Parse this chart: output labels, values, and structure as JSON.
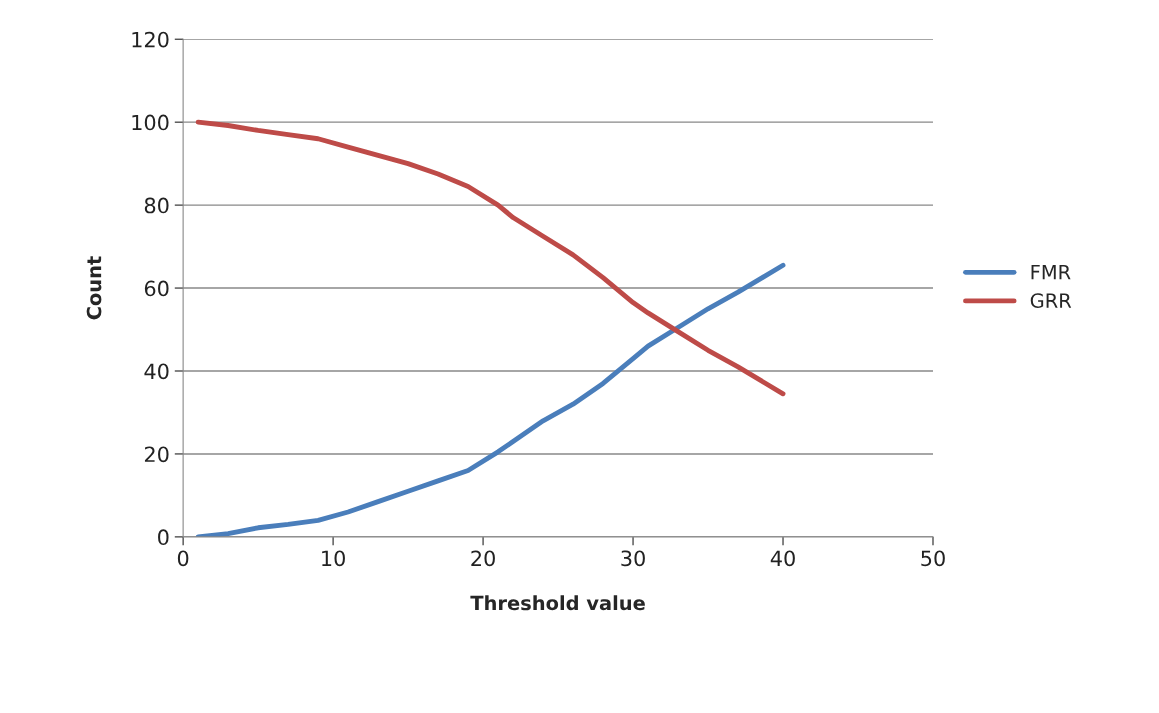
{
  "chart_data": {
    "type": "line",
    "xlabel": "Threshold value",
    "ylabel": "Count",
    "x": [
      1,
      3,
      5,
      7,
      9,
      11,
      13,
      15,
      17,
      19,
      21,
      22,
      24,
      26,
      28,
      30,
      31,
      33,
      35,
      37,
      40
    ],
    "series": [
      {
        "name": "FMR",
        "color": "#4a7ebb",
        "values": [
          0,
          0.8,
          2.2,
          3,
          4,
          6,
          8.5,
          11,
          13.5,
          16,
          20.5,
          23,
          28,
          32,
          37,
          43,
          46,
          50.5,
          55,
          59,
          65.5
        ]
      },
      {
        "name": "GRR",
        "color": "#be4b48",
        "values": [
          100,
          99.2,
          98,
          97,
          96,
          94,
          92,
          90,
          87.5,
          84.5,
          80,
          77,
          72.5,
          68,
          62.5,
          56.5,
          54,
          49.5,
          45,
          41,
          34.5
        ]
      }
    ],
    "xlim": [
      0,
      50
    ],
    "xticks": [
      0,
      10,
      20,
      30,
      40,
      50
    ],
    "ylim": [
      0,
      120
    ],
    "yticks": [
      0,
      20,
      40,
      60,
      80,
      100,
      120
    ],
    "grid": "y",
    "legend": "right",
    "marker": "none",
    "line_style": "solid"
  }
}
